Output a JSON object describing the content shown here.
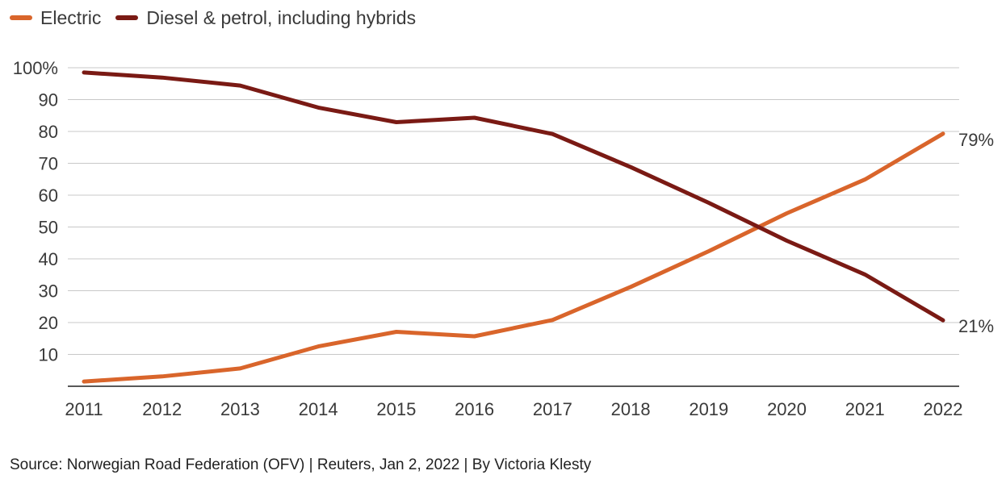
{
  "chart_data": {
    "type": "line",
    "x": [
      "2011",
      "2012",
      "2013",
      "2014",
      "2015",
      "2016",
      "2017",
      "2018",
      "2019",
      "2020",
      "2021",
      "2022"
    ],
    "series": [
      {
        "name": "Electric",
        "color": "#d9652b",
        "values": [
          1.5,
          3.1,
          5.6,
          12.5,
          17.1,
          15.7,
          20.8,
          31.2,
          42.4,
          54.3,
          64.9,
          79.3
        ]
      },
      {
        "name": "Diesel & petrol, including hybrids",
        "color": "#7a1a14",
        "values": [
          98.5,
          96.9,
          94.4,
          87.5,
          82.9,
          84.3,
          79.2,
          68.8,
          57.6,
          45.7,
          35.1,
          20.7
        ]
      }
    ],
    "y_ticks": [
      "10",
      "20",
      "30",
      "40",
      "50",
      "60",
      "70",
      "80",
      "90",
      "100%"
    ],
    "end_labels": [
      "79%",
      "21%"
    ],
    "ylim": [
      0,
      100
    ],
    "grid": true,
    "legend_position": "top-left",
    "title": "",
    "xlabel": "",
    "ylabel": ""
  },
  "source": "Source: Norwegian Road Federation (OFV) | Reuters, Jan 2, 2022 | By Victoria Klesty"
}
